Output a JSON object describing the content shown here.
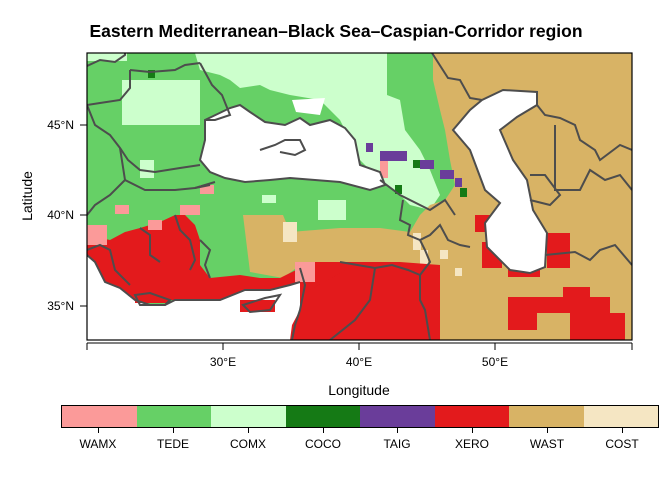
{
  "title": "Eastern Mediterranean–Black Sea–Caspian-Corridor region",
  "axes": {
    "xlabel": "Longitude",
    "ylabel": "Latitude",
    "xticks": [
      "30°E",
      "40°E",
      "50°E"
    ],
    "yticks": [
      "45°N",
      "40°N",
      "35°N"
    ],
    "xlim": [
      20,
      60
    ],
    "ylim": [
      33,
      49
    ]
  },
  "legend": [
    {
      "label": "WAMX",
      "color": "#fb9a99"
    },
    {
      "label": "TEDE",
      "color": "#66d066"
    },
    {
      "label": "COMX",
      "color": "#ccffcc"
    },
    {
      "label": "COCO",
      "color": "#157a15"
    },
    {
      "label": "TAIG",
      "color": "#6a3d9a"
    },
    {
      "label": "XERO",
      "color": "#e31a1c"
    },
    {
      "label": "WAST",
      "color": "#d8b365"
    },
    {
      "label": "COST",
      "color": "#f5e6c3"
    }
  ],
  "colors": {
    "border": "#4d4d4d",
    "water": "#ffffff"
  }
}
